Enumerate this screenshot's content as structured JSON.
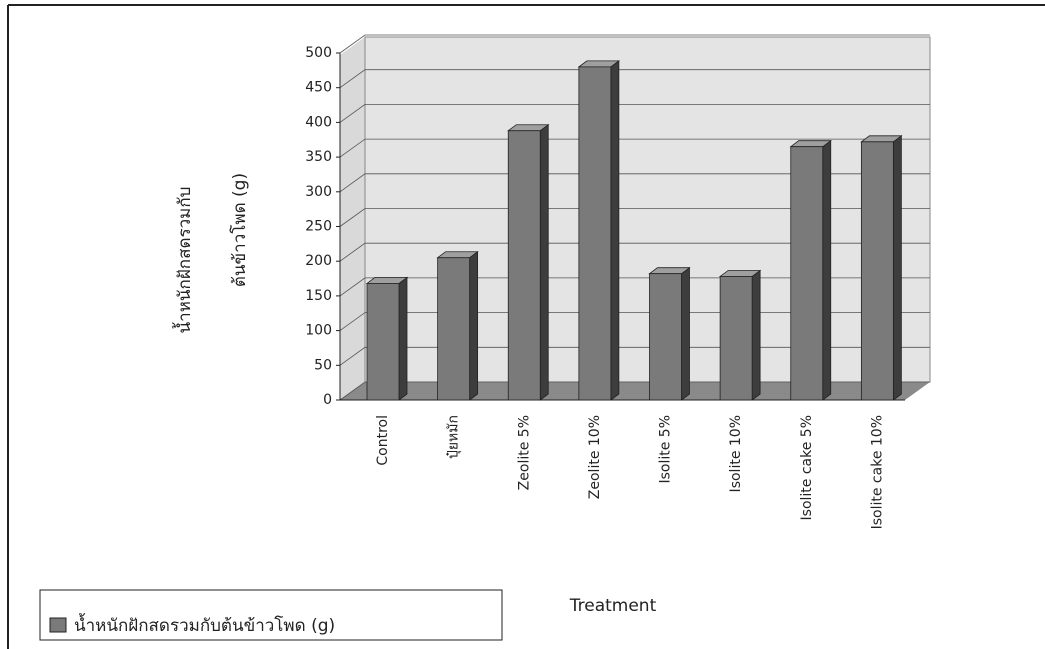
{
  "chart_data": {
    "type": "bar3d",
    "y_label": [
      "น้ำหนักฝักสดรวมกับ",
      "ต้นข้าวโพด (g)"
    ],
    "x_label": "Treatment",
    "categories": [
      "Control",
      "ปุ๋ยหมัก",
      "Zeolite 5%",
      "Zeolite 10%",
      "Isolite 5%",
      "Isolite 10%",
      "Isolite cake 5%",
      "Isolite cake 10%"
    ],
    "series": [
      {
        "name": "น้ำหนักฝักสดรวมกับต้นข้าวโพด (g)",
        "color": "#7a7a7a",
        "values": [
          168,
          205,
          388,
          480,
          182,
          178,
          365,
          372
        ]
      }
    ],
    "ylim": [
      0,
      500
    ],
    "yticks": [
      0,
      50,
      100,
      150,
      200,
      250,
      300,
      350,
      400,
      450,
      500
    ],
    "grid": true
  }
}
